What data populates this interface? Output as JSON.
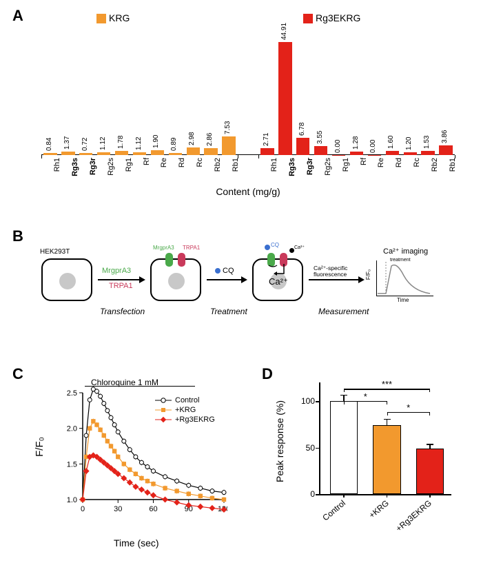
{
  "colors": {
    "krg": "#f2992e",
    "rg3ekrg": "#e32219",
    "black": "#000000",
    "gray": "#c8c8c8",
    "white": "#ffffff",
    "green": "#4aa94a",
    "redprotein": "#c93a5b",
    "blue": "#3a6fcf"
  },
  "panelA": {
    "legend_krg": "KRG",
    "legend_rg3": "Rg3EKRG",
    "xlabel": "Content (mg/g)",
    "ymax": 48,
    "categories": [
      "Rh1",
      "Rg3s",
      "Rg3r",
      "Rg2s",
      "Rg1",
      "Rf",
      "Re",
      "Rd",
      "Rc",
      "Rb2",
      "Rb1"
    ],
    "bold_cats": [
      "Rg3s",
      "Rg3r"
    ],
    "krg_values": [
      0.84,
      1.37,
      0.72,
      1.12,
      1.78,
      1.12,
      1.9,
      0.89,
      2.98,
      2.86,
      7.53
    ],
    "rg3_values": [
      2.71,
      44.91,
      6.78,
      3.55,
      0.0,
      1.28,
      0.0,
      1.6,
      1.2,
      1.53,
      3.86
    ]
  },
  "panelB": {
    "cell_type": "HEK293T",
    "step1_top": "MrgprA3",
    "step1_bot": "TRPA1",
    "step1_label": "Transfection",
    "step2_text": "CQ",
    "step2_label": "Treatment",
    "step3_text": "Ca²⁺-specific\nfluorescence",
    "step3_label": "Measurement",
    "receptor1": "MrgprA3",
    "receptor2": "TRPA1",
    "cq_label": "CQ",
    "ca_label": "Ca²⁺",
    "imaging_title": "Ca²⁺ imaging",
    "imaging_ylabel": "F/F₀",
    "imaging_xlabel": "Time",
    "imaging_annotation": "treatment"
  },
  "panelC": {
    "title": "Chloroquine 1 mM",
    "ylabel": "F/F₀",
    "xlabel": "Time (sec)",
    "xlim": [
      0,
      120
    ],
    "xticks": [
      0,
      30,
      60,
      90,
      120
    ],
    "ylim": [
      1.0,
      2.5
    ],
    "yticks": [
      1.0,
      1.5,
      2.0,
      2.5
    ],
    "legend": [
      "Control",
      "+KRG",
      "+Rg3EKRG"
    ],
    "series": {
      "control": {
        "marker": "circle-open",
        "color": "#000000",
        "t": [
          0,
          3,
          6,
          9,
          12,
          15,
          18,
          21,
          24,
          27,
          30,
          35,
          40,
          45,
          50,
          55,
          60,
          70,
          80,
          90,
          100,
          110,
          120
        ],
        "y": [
          1.0,
          1.9,
          2.4,
          2.55,
          2.52,
          2.45,
          2.35,
          2.25,
          2.15,
          2.05,
          1.95,
          1.82,
          1.7,
          1.6,
          1.52,
          1.46,
          1.4,
          1.32,
          1.26,
          1.2,
          1.16,
          1.12,
          1.1
        ]
      },
      "krg": {
        "marker": "square",
        "color": "#f2992e",
        "t": [
          0,
          3,
          6,
          9,
          12,
          15,
          18,
          21,
          24,
          27,
          30,
          35,
          40,
          45,
          50,
          55,
          60,
          70,
          80,
          90,
          100,
          110,
          120
        ],
        "y": [
          1.0,
          1.6,
          2.0,
          2.1,
          2.05,
          1.98,
          1.9,
          1.82,
          1.75,
          1.68,
          1.6,
          1.5,
          1.42,
          1.36,
          1.3,
          1.26,
          1.22,
          1.16,
          1.12,
          1.08,
          1.05,
          1.02,
          1.0
        ]
      },
      "rg3": {
        "marker": "diamond",
        "color": "#e32219",
        "t": [
          0,
          3,
          6,
          9,
          12,
          15,
          18,
          21,
          24,
          27,
          30,
          35,
          40,
          45,
          50,
          55,
          60,
          70,
          80,
          90,
          100,
          110,
          120
        ],
        "y": [
          1.0,
          1.4,
          1.6,
          1.62,
          1.6,
          1.56,
          1.52,
          1.48,
          1.44,
          1.4,
          1.36,
          1.3,
          1.24,
          1.18,
          1.14,
          1.1,
          1.06,
          1.0,
          0.96,
          0.92,
          0.9,
          0.88,
          0.86
        ]
      }
    }
  },
  "panelD": {
    "ylabel": "Peak response (%)",
    "ylim": [
      0,
      120
    ],
    "yticks": [
      0,
      50,
      100
    ],
    "categories": [
      "Control",
      "+KRG",
      "+Rg3EKRG"
    ],
    "values": [
      100,
      74,
      49
    ],
    "errors": [
      7,
      7,
      5
    ],
    "colors": [
      "#ffffff",
      "#f2992e",
      "#e32219"
    ],
    "sig": [
      {
        "from": 0,
        "to": 2,
        "label": "***",
        "y": 113
      },
      {
        "from": 0,
        "to": 1,
        "label": "*",
        "y": 100
      },
      {
        "from": 1,
        "to": 2,
        "label": "*",
        "y": 88
      }
    ]
  }
}
